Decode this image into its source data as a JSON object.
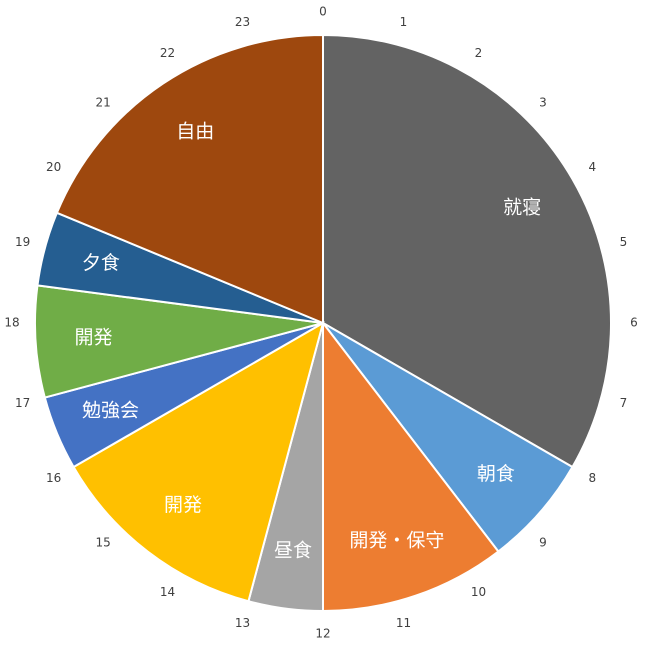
{
  "chart_data": {
    "type": "pie",
    "categories": [
      "就寝",
      "朝食",
      "開発・保守",
      "昼食",
      "開発",
      "勉強会",
      "開発",
      "夕食",
      "自由"
    ],
    "values": [
      8,
      1.5,
      2.5,
      1,
      3,
      1,
      1.5,
      1,
      4.5
    ],
    "colors": [
      "#636363",
      "#5b9bd5",
      "#ed7d31",
      "#a5a5a5",
      "#ffc000",
      "#4472c4",
      "#70ad47",
      "#255e91",
      "#9e480e"
    ],
    "hour_ticks": [
      0,
      1,
      2,
      3,
      4,
      5,
      6,
      7,
      8,
      9,
      10,
      11,
      12,
      13,
      14,
      15,
      16,
      17,
      18,
      19,
      20,
      21,
      22,
      23
    ]
  }
}
